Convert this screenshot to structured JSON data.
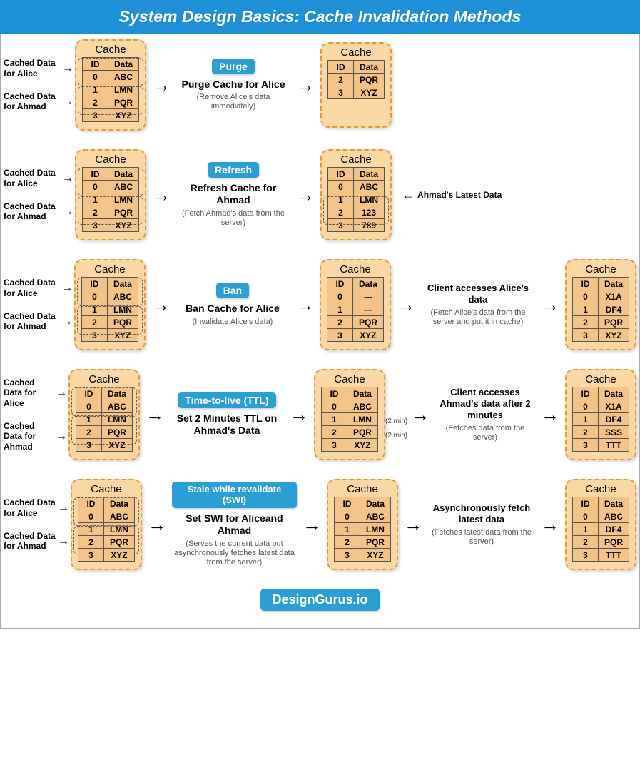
{
  "title": "System Design Basics: Cache Invalidation Methods",
  "footer": "DesignGurus.io",
  "colors": {
    "header_bg": "#1e90d8",
    "badge_bg": "#2a9fd6",
    "cache_bg": "#fbd7a3",
    "cache_border": "#e09a3e",
    "table_bg": "#f3c387"
  },
  "common": {
    "cache_label": "Cache",
    "id_header": "ID",
    "data_header": "Data",
    "label_alice": "Cached Data for Alice",
    "label_ahmad": "Cached Data for Ahmad"
  },
  "initial_cache": [
    {
      "id": "0",
      "data": "ABC"
    },
    {
      "id": "1",
      "data": "LMN"
    },
    {
      "id": "2",
      "data": "PQR"
    },
    {
      "id": "3",
      "data": "XYZ"
    }
  ],
  "methods": {
    "purge": {
      "badge": "Purge",
      "action": "Purge Cache for Alice",
      "note": "(Remove Alice's data immediately)",
      "after1": [
        {
          "id": "2",
          "data": "PQR"
        },
        {
          "id": "3",
          "data": "XYZ"
        }
      ]
    },
    "refresh": {
      "badge": "Refresh",
      "action": "Refresh Cache for Ahmad",
      "note": "(Fetch Ahmad's data from the server)",
      "after1": [
        {
          "id": "0",
          "data": "ABC"
        },
        {
          "id": "1",
          "data": "LMN"
        },
        {
          "id": "2",
          "data": "123"
        },
        {
          "id": "3",
          "data": "789"
        }
      ],
      "side_label": "Ahmad's Latest Data"
    },
    "ban": {
      "badge": "Ban",
      "action": "Ban Cache for Alice",
      "note": "(Invalidate Alice's data)",
      "after1": [
        {
          "id": "0",
          "data": "---"
        },
        {
          "id": "1",
          "data": "---"
        },
        {
          "id": "2",
          "data": "PQR"
        },
        {
          "id": "3",
          "data": "XYZ"
        }
      ],
      "step2_title": "Client accesses Alice's data",
      "step2_sub": "(Fetch Alice's data from the server and put it in cache)",
      "after2": [
        {
          "id": "0",
          "data": "X1A"
        },
        {
          "id": "1",
          "data": "DF4"
        },
        {
          "id": "2",
          "data": "PQR"
        },
        {
          "id": "3",
          "data": "XYZ"
        }
      ]
    },
    "ttl": {
      "badge": "Time-to-live (TTL)",
      "action": "Set 2 Minutes TTL on Ahmad's Data",
      "note": "",
      "after1": [
        {
          "id": "0",
          "data": "ABC"
        },
        {
          "id": "1",
          "data": "LMN"
        },
        {
          "id": "2",
          "data": "PQR"
        },
        {
          "id": "3",
          "data": "XYZ"
        }
      ],
      "ttl_annot": "(2 min)",
      "step2_title": "Client accesses Ahmad's data after 2 minutes",
      "step2_sub": "(Fetches data from the server)",
      "after2": [
        {
          "id": "0",
          "data": "X1A"
        },
        {
          "id": "1",
          "data": "DF4"
        },
        {
          "id": "2",
          "data": "SSS"
        },
        {
          "id": "3",
          "data": "TTT"
        }
      ]
    },
    "swi": {
      "badge": "Stale while revalidate (SWI)",
      "action": "Set SWI for Aliceand Ahmad",
      "note": "(Serves the current data but asynchronously fetches latest data from the server)",
      "after1": [
        {
          "id": "0",
          "data": "ABC"
        },
        {
          "id": "1",
          "data": "LMN"
        },
        {
          "id": "2",
          "data": "PQR"
        },
        {
          "id": "3",
          "data": "XYZ"
        }
      ],
      "step2_title": "Asynchronously fetch latest data",
      "step2_sub": "(Fetches latest data from the server)",
      "after2": [
        {
          "id": "0",
          "data": "ABC"
        },
        {
          "id": "1",
          "data": "DF4"
        },
        {
          "id": "2",
          "data": "PQR"
        },
        {
          "id": "3",
          "data": "TTT"
        }
      ]
    }
  }
}
